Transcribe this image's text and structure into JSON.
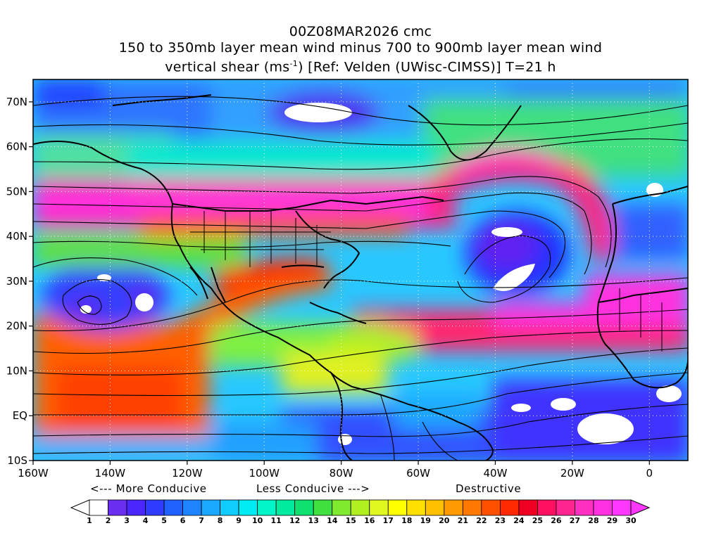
{
  "title": {
    "line1": "00Z08MAR2026 cmc",
    "line2": "150 to 350mb layer mean wind minus 700 to 900mb layer mean wind",
    "line3_pre": "vertical shear (ms",
    "line3_sup": "-1",
    "line3_post": ") [Ref: Velden (UWisc-CIMSS)] T=21 h"
  },
  "axes": {
    "lat_labels": [
      "70N",
      "60N",
      "50N",
      "40N",
      "30N",
      "20N",
      "10N",
      "EQ",
      "10S"
    ],
    "lat_values": [
      70,
      60,
      50,
      40,
      30,
      20,
      10,
      0,
      -10
    ],
    "lon_labels": [
      "160W",
      "140W",
      "120W",
      "100W",
      "80W",
      "60W",
      "40W",
      "20W",
      "0"
    ],
    "lon_values": [
      -160,
      -140,
      -120,
      -100,
      -80,
      -60,
      -40,
      -20,
      0
    ],
    "lon_range": [
      -160,
      10
    ],
    "lat_range": [
      -10,
      75
    ]
  },
  "conduciveness": {
    "more": "<--- More Conducive",
    "less": "Less Conducive --->",
    "destructive": "Destructive"
  },
  "colorbar": {
    "labels": [
      "1",
      "2",
      "3",
      "4",
      "5",
      "6",
      "7",
      "8",
      "9",
      "10",
      "11",
      "12",
      "13",
      "14",
      "15",
      "16",
      "17",
      "18",
      "19",
      "20",
      "21",
      "22",
      "23",
      "24",
      "25",
      "26",
      "27",
      "28",
      "29",
      "30"
    ],
    "colors": [
      "#ffffff",
      "#6a2ef0",
      "#4b26ff",
      "#2f3cff",
      "#2060ff",
      "#1f84ff",
      "#1aa8ff",
      "#10ccff",
      "#00ecf4",
      "#00f5c8",
      "#00eaa0",
      "#10e070",
      "#40e040",
      "#80ea30",
      "#b0f020",
      "#e0f820",
      "#ffff00",
      "#ffe000",
      "#ffc000",
      "#ff9a00",
      "#ff7800",
      "#ff5000",
      "#ff2800",
      "#f00020",
      "#ff1060",
      "#ff2490",
      "#ff30c0",
      "#ff30e0",
      "#ff38ff"
    ]
  }
}
